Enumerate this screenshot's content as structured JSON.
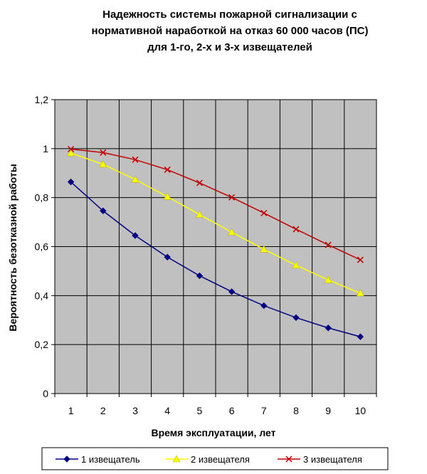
{
  "chart_data": {
    "type": "line",
    "title_lines": [
      "Надежность системы пожарной сигнализации с",
      "нормативной наработкой на отказ 60 000 часов (ПС)",
      "для 1-го, 2-х и 3-х извещателей"
    ],
    "xlabel": "Время эксплуатации,  лет",
    "ylabel": "Вероятность  безотказной  работы",
    "x": [
      1,
      2,
      3,
      4,
      5,
      6,
      7,
      8,
      9,
      10
    ],
    "x_tick_labels": [
      "1",
      "2",
      "3",
      "4",
      "5",
      "6",
      "7",
      "8",
      "9",
      "10"
    ],
    "y_ticks": [
      0,
      0.2,
      0.4,
      0.6,
      0.8,
      1,
      1.2
    ],
    "y_tick_labels": [
      "0",
      "0,2",
      "0,4",
      "0,6",
      "0,8",
      "1",
      "1,2"
    ],
    "ylim": [
      0,
      1.2
    ],
    "grid": true,
    "plot_background": "#c0c0c0",
    "legend_position": "bottom",
    "series": [
      {
        "name": "1 извещатель",
        "color": "#000080",
        "marker": "diamond",
        "values": [
          0.864,
          0.746,
          0.645,
          0.557,
          0.481,
          0.416,
          0.359,
          0.31,
          0.268,
          0.232
        ]
      },
      {
        "name": "2 извещателя",
        "color": "#ffff00",
        "marker": "triangle",
        "values": [
          0.982,
          0.936,
          0.874,
          0.804,
          0.731,
          0.659,
          0.589,
          0.524,
          0.464,
          0.41
        ]
      },
      {
        "name": "3 извещателя",
        "color": "#c00000",
        "marker": "x",
        "values": [
          0.998,
          0.984,
          0.955,
          0.914,
          0.86,
          0.801,
          0.737,
          0.671,
          0.607,
          0.546
        ]
      }
    ]
  }
}
